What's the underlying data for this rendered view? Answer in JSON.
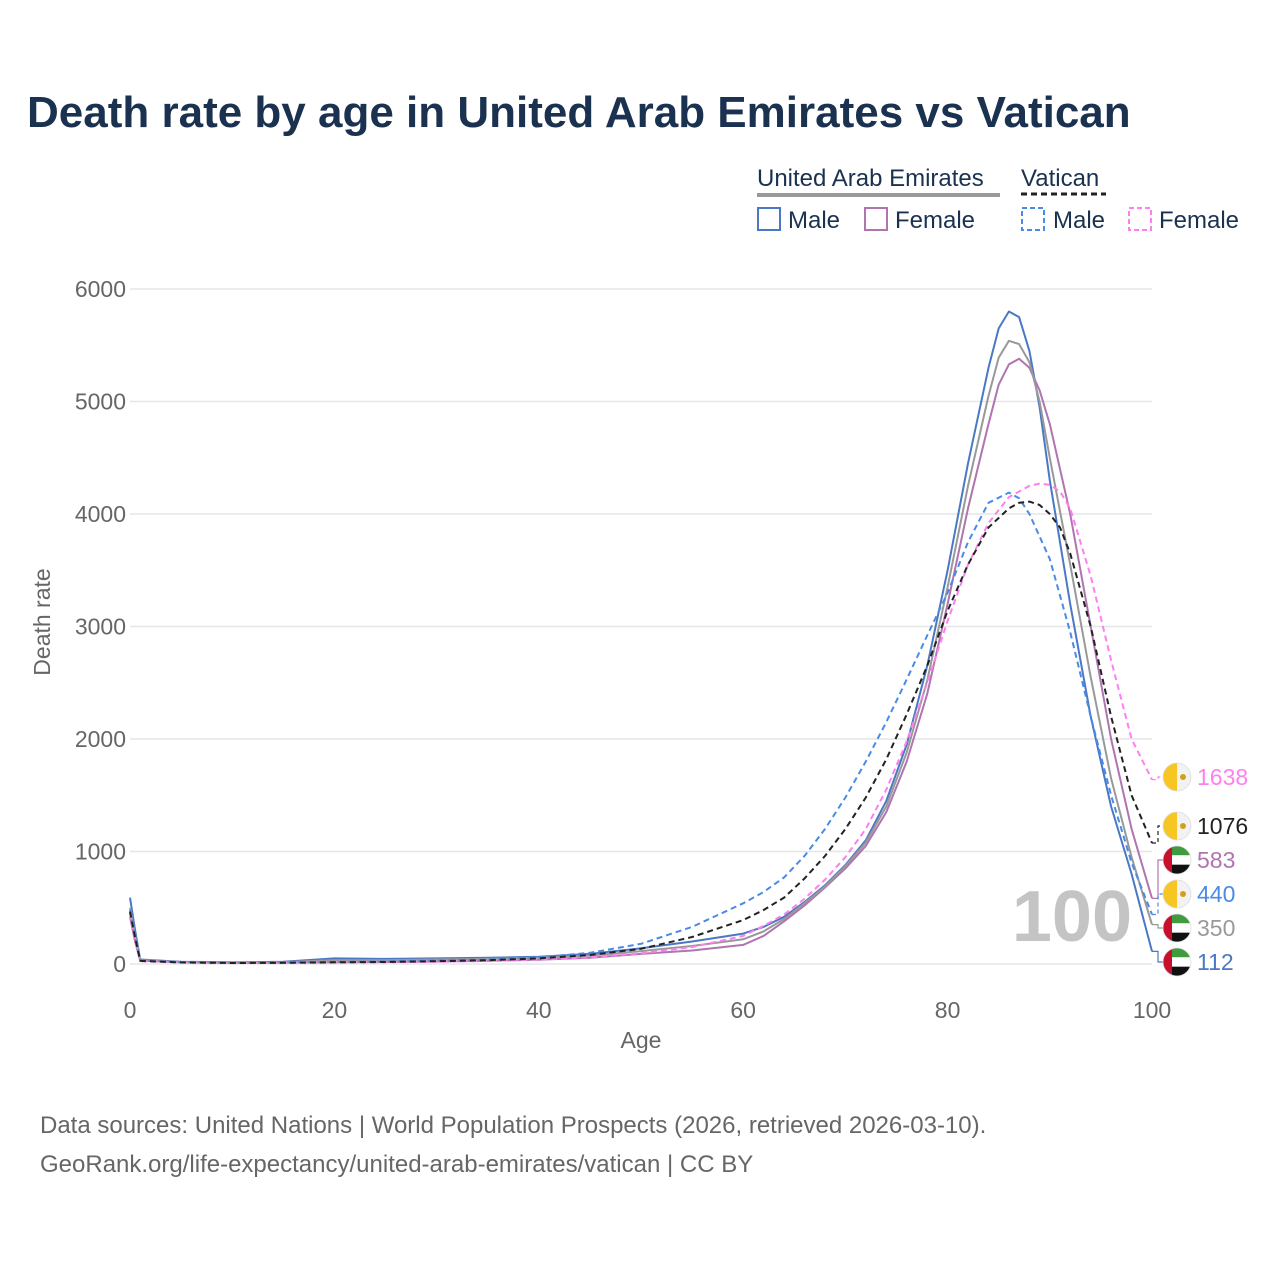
{
  "title": "Death rate by age in United Arab Emirates vs Vatican",
  "legend": {
    "group1": "United Arab Emirates",
    "group2": "Vatican",
    "male": "Male",
    "female": "Female"
  },
  "source": {
    "line1": "Data sources: United Nations | World Population Prospects (2026, retrieved 2026-03-10).",
    "line2": "GeoRank.org/life-expectancy/united-arab-emirates/vatican | CC BY"
  },
  "chart_data": {
    "type": "line",
    "xlabel": "Age",
    "ylabel": "Death rate",
    "xlim": [
      0,
      100
    ],
    "ylim": [
      0,
      6000
    ],
    "xticks": [
      0,
      20,
      40,
      60,
      80,
      100
    ],
    "yticks": [
      0,
      1000,
      2000,
      3000,
      4000,
      5000,
      6000
    ],
    "year_label": "100",
    "colors": {
      "uae_male": "#4a78c4",
      "uae_female": "#b074b0",
      "uae_total": "#999999",
      "vat_male": "#4a8ae8",
      "vat_female": "#ff7ef0",
      "vat_total": "#222222",
      "grid": "#e6e6e6",
      "axis_text": "#666666",
      "title": "#1a3150"
    },
    "series": [
      {
        "name": "United Arab Emirates Male",
        "key": "uae_male",
        "dashed": false,
        "x": [
          0,
          0.5,
          1,
          5,
          10,
          15,
          20,
          25,
          30,
          35,
          40,
          45,
          50,
          55,
          60,
          62,
          64,
          66,
          68,
          70,
          72,
          74,
          76,
          78,
          80,
          82,
          84,
          85,
          86,
          87,
          88,
          89,
          90,
          92,
          94,
          96,
          98,
          100
        ],
        "y": [
          590,
          300,
          40,
          20,
          15,
          20,
          50,
          45,
          50,
          55,
          65,
          90,
          140,
          200,
          270,
          330,
          420,
          550,
          700,
          880,
          1100,
          1450,
          1950,
          2650,
          3500,
          4450,
          5300,
          5650,
          5800,
          5750,
          5450,
          4950,
          4300,
          3200,
          2200,
          1400,
          800,
          112
        ]
      },
      {
        "name": "United Arab Emirates Female",
        "key": "uae_female",
        "dashed": false,
        "x": [
          0,
          0.5,
          1,
          5,
          10,
          15,
          20,
          25,
          30,
          35,
          40,
          45,
          50,
          55,
          60,
          62,
          64,
          66,
          68,
          70,
          72,
          74,
          76,
          78,
          80,
          82,
          84,
          85,
          86,
          87,
          88,
          89,
          90,
          92,
          94,
          96,
          98,
          100
        ],
        "y": [
          420,
          200,
          30,
          15,
          10,
          12,
          15,
          18,
          22,
          28,
          38,
          55,
          90,
          120,
          170,
          250,
          380,
          520,
          680,
          850,
          1050,
          1350,
          1800,
          2400,
          3200,
          4050,
          4800,
          5150,
          5330,
          5380,
          5300,
          5100,
          4800,
          4000,
          3000,
          2000,
          1200,
          583
        ]
      },
      {
        "name": "United Arab Emirates Total",
        "key": "uae_total",
        "dashed": false,
        "x": [
          0,
          0.5,
          1,
          5,
          10,
          15,
          20,
          25,
          30,
          35,
          40,
          45,
          50,
          55,
          60,
          62,
          64,
          66,
          68,
          70,
          72,
          74,
          76,
          78,
          80,
          82,
          84,
          85,
          86,
          87,
          88,
          89,
          90,
          92,
          94,
          96,
          98,
          100
        ],
        "y": [
          500,
          250,
          35,
          18,
          12,
          16,
          35,
          35,
          40,
          45,
          55,
          75,
          115,
          160,
          220,
          290,
          400,
          540,
          690,
          870,
          1080,
          1400,
          1880,
          2520,
          3350,
          4250,
          5050,
          5390,
          5540,
          5510,
          5350,
          5000,
          4500,
          3550,
          2550,
          1650,
          950,
          350
        ]
      },
      {
        "name": "Vatican Male",
        "key": "vat_male",
        "dashed": true,
        "x": [
          0,
          0.5,
          1,
          5,
          10,
          15,
          20,
          25,
          30,
          35,
          40,
          45,
          50,
          55,
          60,
          62,
          64,
          66,
          68,
          70,
          72,
          74,
          76,
          78,
          80,
          82,
          84,
          86,
          87,
          88,
          90,
          92,
          94,
          96,
          98,
          100
        ],
        "y": [
          480,
          250,
          30,
          15,
          10,
          12,
          18,
          22,
          30,
          40,
          60,
          100,
          180,
          330,
          540,
          640,
          770,
          960,
          1200,
          1480,
          1800,
          2150,
          2530,
          2920,
          3300,
          3750,
          4100,
          4190,
          4140,
          4000,
          3600,
          2950,
          2200,
          1500,
          900,
          440
        ]
      },
      {
        "name": "Vatican Female",
        "key": "vat_female",
        "dashed": true,
        "x": [
          0,
          0.5,
          1,
          5,
          10,
          15,
          20,
          25,
          30,
          35,
          40,
          45,
          50,
          55,
          60,
          62,
          64,
          66,
          68,
          70,
          72,
          74,
          76,
          78,
          80,
          82,
          84,
          86,
          88,
          89,
          90,
          91,
          92,
          94,
          96,
          98,
          100
        ],
        "y": [
          450,
          220,
          25,
          12,
          8,
          10,
          12,
          15,
          20,
          28,
          40,
          60,
          95,
          150,
          250,
          340,
          440,
          580,
          750,
          950,
          1200,
          1550,
          1980,
          2500,
          3050,
          3550,
          3920,
          4150,
          4250,
          4270,
          4260,
          4200,
          4050,
          3450,
          2700,
          2000,
          1638
        ]
      },
      {
        "name": "Vatican Total",
        "key": "vat_total",
        "dashed": true,
        "x": [
          0,
          0.5,
          1,
          5,
          10,
          15,
          20,
          25,
          30,
          35,
          40,
          45,
          50,
          55,
          60,
          62,
          64,
          66,
          68,
          70,
          72,
          74,
          76,
          78,
          80,
          82,
          84,
          86,
          87,
          88,
          89,
          90,
          91,
          92,
          94,
          96,
          98,
          100
        ],
        "y": [
          465,
          235,
          28,
          14,
          9,
          11,
          15,
          18,
          25,
          34,
          50,
          80,
          135,
          240,
          390,
          480,
          590,
          760,
          960,
          1200,
          1480,
          1820,
          2220,
          2650,
          3140,
          3550,
          3880,
          4050,
          4100,
          4110,
          4080,
          4000,
          3880,
          3650,
          3000,
          2200,
          1500,
          1076
        ]
      }
    ],
    "end_labels": [
      {
        "value": "1638",
        "key": "vat_female",
        "flag": "vatican"
      },
      {
        "value": "1076",
        "key": "vat_total",
        "flag": "vatican"
      },
      {
        "value": "583",
        "key": "uae_female",
        "flag": "uae"
      },
      {
        "value": "440",
        "key": "vat_male",
        "flag": "vatican"
      },
      {
        "value": "350",
        "key": "uae_total",
        "flag": "uae"
      },
      {
        "value": "112",
        "key": "uae_male",
        "flag": "uae"
      }
    ]
  }
}
